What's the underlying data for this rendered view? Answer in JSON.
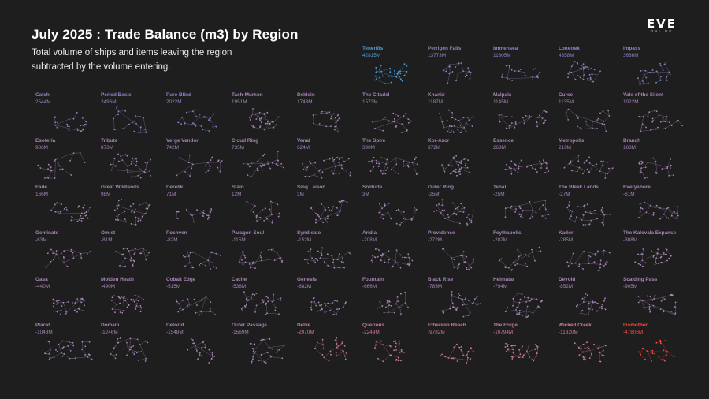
{
  "title": "July 2025 : Trade Balance (m3) by Region",
  "subtitle_lines": [
    "Total volume of ships and items leaving the region",
    "subtracted by the volume entering."
  ],
  "logo": {
    "word": "EVE",
    "sub": "ONLINE"
  },
  "colors": {
    "background": "#1e1e1e",
    "positive_strong": "#4da3e0",
    "positive": "#8a86c4",
    "neutral": "#a684b6",
    "negative": "#cc7a9e",
    "negative_strong": "#ff4a3d"
  },
  "chart_data": {
    "type": "small-multiples",
    "title": "July 2025 : Trade Balance (m3) by Region",
    "unit": "m3",
    "regions": [
      {
        "name": "Tenerifis",
        "value": 42815,
        "label": "42815M"
      },
      {
        "name": "Perrigen Falls",
        "value": 13773,
        "label": "13773M"
      },
      {
        "name": "Immensea",
        "value": 11305,
        "label": "11305M"
      },
      {
        "name": "Lonetrek",
        "value": 4358,
        "label": "4358M"
      },
      {
        "name": "Impass",
        "value": 3686,
        "label": "3686M"
      },
      {
        "name": "Catch",
        "value": 2544,
        "label": "2544M"
      },
      {
        "name": "Period Basis",
        "value": 2496,
        "label": "2496M"
      },
      {
        "name": "Pure Blind",
        "value": 2022,
        "label": "2022M"
      },
      {
        "name": "Tash-Murkon",
        "value": 1951,
        "label": "1951M"
      },
      {
        "name": "Deklein",
        "value": 1743,
        "label": "1743M"
      },
      {
        "name": "The Citadel",
        "value": 1573,
        "label": "1573M"
      },
      {
        "name": "Khanid",
        "value": 1187,
        "label": "1187M"
      },
      {
        "name": "Malpais",
        "value": 1145,
        "label": "1145M"
      },
      {
        "name": "Curse",
        "value": 1135,
        "label": "1135M"
      },
      {
        "name": "Vale of the Silent",
        "value": 1022,
        "label": "1022M"
      },
      {
        "name": "Esoteria",
        "value": 986,
        "label": "986M"
      },
      {
        "name": "Tribute",
        "value": 873,
        "label": "873M"
      },
      {
        "name": "Verge Vendor",
        "value": 742,
        "label": "742M"
      },
      {
        "name": "Cloud Ring",
        "value": 735,
        "label": "735M"
      },
      {
        "name": "Venal",
        "value": 624,
        "label": "624M"
      },
      {
        "name": "The Spire",
        "value": 390,
        "label": "390M"
      },
      {
        "name": "Kor-Azor",
        "value": 372,
        "label": "372M"
      },
      {
        "name": "Essence",
        "value": 263,
        "label": "263M"
      },
      {
        "name": "Metropolis",
        "value": 219,
        "label": "219M"
      },
      {
        "name": "Branch",
        "value": 183,
        "label": "183M"
      },
      {
        "name": "Fade",
        "value": 166,
        "label": "166M"
      },
      {
        "name": "Great Wildlands",
        "value": 98,
        "label": "98M"
      },
      {
        "name": "Derelik",
        "value": 71,
        "label": "71M"
      },
      {
        "name": "Stain",
        "value": 12,
        "label": "12M"
      },
      {
        "name": "Sinq Laison",
        "value": 3,
        "label": "3M"
      },
      {
        "name": "Solitude",
        "value": 3,
        "label": "3M"
      },
      {
        "name": "Outer Ring",
        "value": -25,
        "label": "-25M"
      },
      {
        "name": "Tenal",
        "value": -25,
        "label": "-25M"
      },
      {
        "name": "The Bleak Lands",
        "value": -27,
        "label": "-27M"
      },
      {
        "name": "Everyshore",
        "value": -61,
        "label": "-61M"
      },
      {
        "name": "Geminate",
        "value": -63,
        "label": "-63M"
      },
      {
        "name": "Omist",
        "value": -81,
        "label": "-81M"
      },
      {
        "name": "Pochven",
        "value": -82,
        "label": "-82M"
      },
      {
        "name": "Paragon Soul",
        "value": -115,
        "label": "-115M"
      },
      {
        "name": "Syndicate",
        "value": -152,
        "label": "-152M"
      },
      {
        "name": "Aridia",
        "value": -208,
        "label": "-208M"
      },
      {
        "name": "Providence",
        "value": -272,
        "label": "-272M"
      },
      {
        "name": "Feythabolis",
        "value": -282,
        "label": "-282M"
      },
      {
        "name": "Kador",
        "value": -285,
        "label": "-285M"
      },
      {
        "name": "The Kalevala Expanse",
        "value": -388,
        "label": "-388M"
      },
      {
        "name": "Oasa",
        "value": -440,
        "label": "-440M"
      },
      {
        "name": "Molden Heath",
        "value": -490,
        "label": "-490M"
      },
      {
        "name": "Cobalt Edge",
        "value": -515,
        "label": "-515M"
      },
      {
        "name": "Cache",
        "value": -536,
        "label": "-536M"
      },
      {
        "name": "Genesis",
        "value": -682,
        "label": "-682M"
      },
      {
        "name": "Fountain",
        "value": -666,
        "label": "-666M"
      },
      {
        "name": "Black Rise",
        "value": -785,
        "label": "-785M"
      },
      {
        "name": "Heimatar",
        "value": -794,
        "label": "-794M"
      },
      {
        "name": "Devoid",
        "value": -852,
        "label": "-852M"
      },
      {
        "name": "Scalding Pass",
        "value": -905,
        "label": "-905M"
      },
      {
        "name": "Placid",
        "value": -1048,
        "label": "-1048M"
      },
      {
        "name": "Domain",
        "value": -1246,
        "label": "-1246M"
      },
      {
        "name": "Detorid",
        "value": -1548,
        "label": "-1548M"
      },
      {
        "name": "Outer Passage",
        "value": -1569,
        "label": "-1569M"
      },
      {
        "name": "Delve",
        "value": -2070,
        "label": "-2070M"
      },
      {
        "name": "Querious",
        "value": -2249,
        "label": "-2249M"
      },
      {
        "name": "Etherium Reach",
        "value": -9782,
        "label": "-9782M"
      },
      {
        "name": "The Forge",
        "value": -10794,
        "label": "-10794M"
      },
      {
        "name": "Wicked Creek",
        "value": -11820,
        "label": "-11820M"
      },
      {
        "name": "Insmother",
        "value": -47806,
        "label": "-47806M"
      }
    ]
  }
}
